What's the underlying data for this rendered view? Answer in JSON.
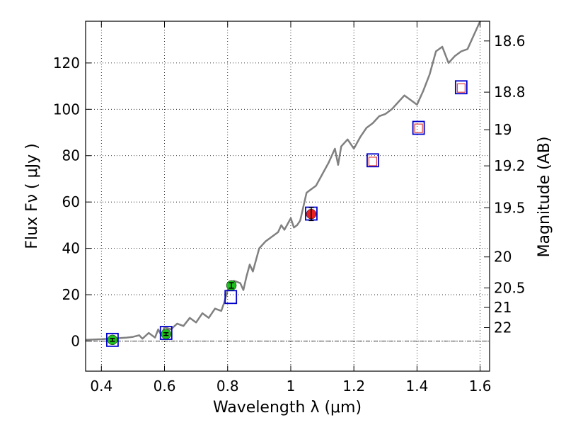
{
  "chart_data": {
    "type": "scatter",
    "xlabel": "Wavelength  λ (μm)",
    "ylabel": "Flux  Fν  ( μJy )",
    "ylabel_right": "Magnitude (AB)",
    "xlim": [
      0.35,
      1.63
    ],
    "ylim": [
      -13,
      138
    ],
    "x_ticks": [
      {
        "value": 0.4,
        "label": "0.4"
      },
      {
        "value": 0.6,
        "label": "0.6"
      },
      {
        "value": 0.8,
        "label": "0.8"
      },
      {
        "value": 1.0,
        "label": "1"
      },
      {
        "value": 1.2,
        "label": "1.2"
      },
      {
        "value": 1.4,
        "label": "1.4"
      },
      {
        "value": 1.6,
        "label": "1.6"
      }
    ],
    "y_ticks": [
      {
        "value": 0,
        "label": "0"
      },
      {
        "value": 20,
        "label": "20"
      },
      {
        "value": 40,
        "label": "40"
      },
      {
        "value": 60,
        "label": "60"
      },
      {
        "value": 80,
        "label": "80"
      },
      {
        "value": 100,
        "label": "100"
      },
      {
        "value": 120,
        "label": "120"
      }
    ],
    "mag_ticks": [
      {
        "flux": 129.5,
        "label": "18.6"
      },
      {
        "flux": 107.4,
        "label": "18.8"
      },
      {
        "flux": 91.2,
        "label": "19"
      },
      {
        "flux": 75.6,
        "label": "19.2"
      },
      {
        "flux": 57.5,
        "label": "19.5"
      },
      {
        "flux": 36.3,
        "label": "20"
      },
      {
        "flux": 22.9,
        "label": "20.5"
      },
      {
        "flux": 14.5,
        "label": "21"
      },
      {
        "flux": 5.8,
        "label": "22"
      }
    ],
    "grid": true,
    "zero_line": true,
    "series": [
      {
        "name": "model-spectrum",
        "kind": "line",
        "color": "#808080",
        "x": [
          0.35,
          0.4,
          0.45,
          0.48,
          0.5,
          0.52,
          0.53,
          0.55,
          0.57,
          0.58,
          0.59,
          0.6,
          0.62,
          0.64,
          0.66,
          0.68,
          0.7,
          0.72,
          0.74,
          0.76,
          0.78,
          0.79,
          0.8,
          0.81,
          0.82,
          0.84,
          0.85,
          0.86,
          0.87,
          0.88,
          0.9,
          0.92,
          0.94,
          0.96,
          0.97,
          0.98,
          1.0,
          1.01,
          1.02,
          1.03,
          1.04,
          1.05,
          1.06,
          1.08,
          1.1,
          1.12,
          1.14,
          1.15,
          1.16,
          1.18,
          1.2,
          1.22,
          1.24,
          1.26,
          1.28,
          1.3,
          1.32,
          1.34,
          1.36,
          1.38,
          1.4,
          1.42,
          1.44,
          1.46,
          1.48,
          1.5,
          1.52,
          1.54,
          1.56,
          1.58,
          1.6
        ],
        "y": [
          0.5,
          0.8,
          1.2,
          1.5,
          1.8,
          2.5,
          1.0,
          3.5,
          1.5,
          5.0,
          2.5,
          6.0,
          5.0,
          7.5,
          6.5,
          10.0,
          8.0,
          12.0,
          10.0,
          14.0,
          13.0,
          17.0,
          22.0,
          24.0,
          26.0,
          25.0,
          22.0,
          28.0,
          33.0,
          30.0,
          40.0,
          43.0,
          45.0,
          47.0,
          50.0,
          48.0,
          53.0,
          49.0,
          50.0,
          52.0,
          58.0,
          64.0,
          65.0,
          67.0,
          72.0,
          77.0,
          83.0,
          76.0,
          84.0,
          87.0,
          83.0,
          88.0,
          92.0,
          94.0,
          97.0,
          98.0,
          100.0,
          103.0,
          106.0,
          104.0,
          102.0,
          108.0,
          115.0,
          125.0,
          127.0,
          120.0,
          123.0,
          125.0,
          126.0,
          132.0,
          138.0
        ]
      },
      {
        "name": "model-band-flux",
        "kind": "open-square",
        "color": "#0000cc",
        "x": [
          0.435,
          0.605,
          0.81,
          1.065,
          1.26,
          1.405,
          1.54
        ],
        "y": [
          0.5,
          3.5,
          19.0,
          55.0,
          78.0,
          92.0,
          109.5
        ]
      },
      {
        "name": "observed-green",
        "kind": "filled-circle",
        "color": "#1fbf1f",
        "x": [
          0.435,
          0.605,
          0.812
        ],
        "y": [
          0.5,
          3.0,
          24.0
        ],
        "err": [
          0.6,
          0.6,
          1.2
        ]
      },
      {
        "name": "observed-red",
        "kind": "filled-circle",
        "color": "#e82020",
        "x": [
          1.065
        ],
        "y": [
          54.8
        ],
        "err": [
          2.8
        ]
      },
      {
        "name": "upper-limits",
        "kind": "small-open-square",
        "color": "#d94040",
        "x": [
          1.26,
          1.405,
          1.54
        ],
        "y": [
          77.5,
          91.8,
          109.2
        ]
      }
    ]
  }
}
